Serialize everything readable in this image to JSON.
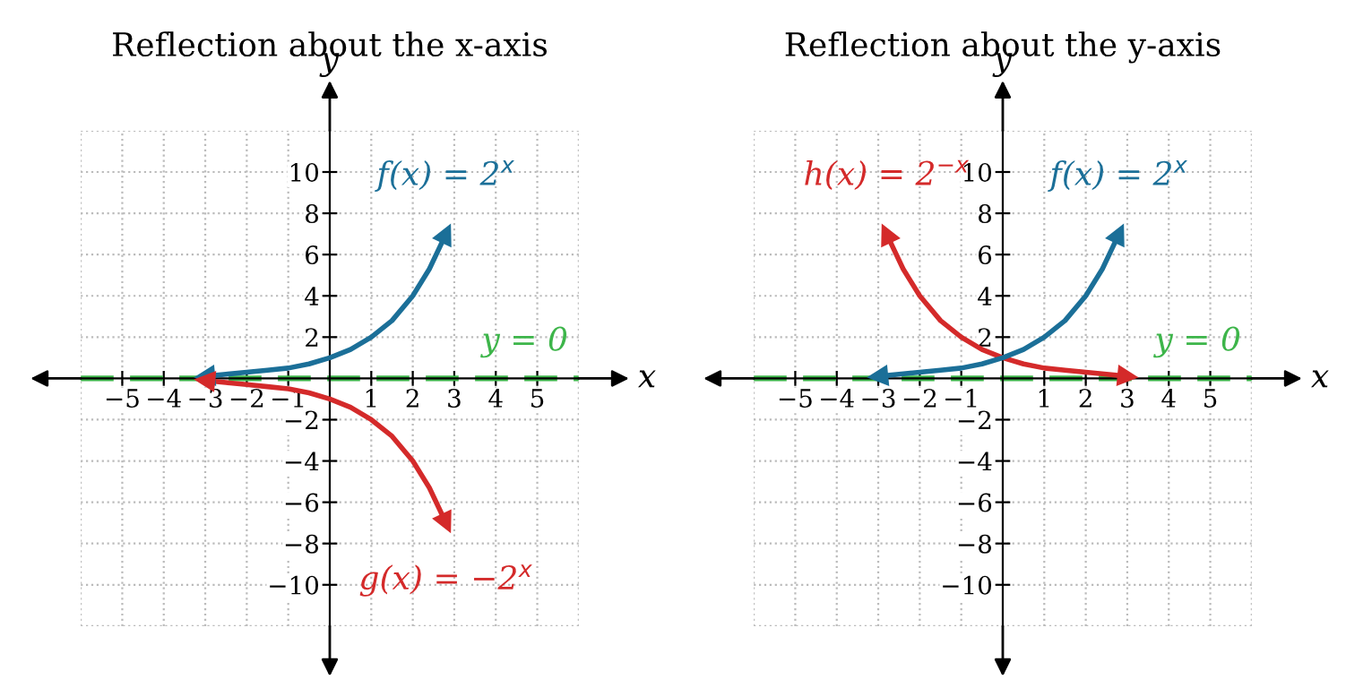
{
  "chart_data": [
    {
      "type": "line",
      "title": "Reflection about the x-axis",
      "xlabel": "x",
      "ylabel": "y",
      "xlim": [
        -6,
        6
      ],
      "ylim": [
        -12,
        12
      ],
      "xticks": [
        -5,
        -4,
        -3,
        -2,
        -1,
        1,
        2,
        3,
        4,
        5
      ],
      "yticks": [
        -10,
        -8,
        -6,
        -4,
        -2,
        2,
        4,
        6,
        8,
        10
      ],
      "grid": true,
      "line_style": "solid",
      "marker": "none",
      "series": [
        {
          "name": "f(x) = 2$^{x}$",
          "color": "#1b6f98",
          "x": [
            -3,
            -2.5,
            -2,
            -1.5,
            -1,
            -0.5,
            0,
            0.5,
            1,
            1.5,
            2,
            2.4,
            2.8
          ],
          "values": [
            0.1,
            0.2,
            0.3,
            0.4,
            0.5,
            0.7,
            1,
            1.4,
            2,
            2.8,
            4,
            5.3,
            7
          ]
        },
        {
          "name": "g(x) = −2$^{x}$",
          "color": "#d42a2a",
          "x": [
            -3,
            -2.5,
            -2,
            -1.5,
            -1,
            -0.5,
            0,
            0.5,
            1,
            1.5,
            2,
            2.4,
            2.8
          ],
          "values": [
            -0.1,
            -0.2,
            -0.3,
            -0.4,
            -0.5,
            -0.7,
            -1,
            -1.4,
            -2,
            -2.8,
            -4,
            -5.3,
            -7
          ]
        }
      ],
      "ref_lines": [
        {
          "axis": "y",
          "value": 0,
          "label": "y = 0",
          "color": "#3db54a",
          "line_style": "dashed"
        }
      ]
    },
    {
      "type": "line",
      "title": "Reflection about the y-axis",
      "xlabel": "x",
      "ylabel": "y",
      "xlim": [
        -6,
        6
      ],
      "ylim": [
        -12,
        12
      ],
      "xticks": [
        -5,
        -4,
        -3,
        -2,
        -1,
        1,
        2,
        3,
        4,
        5
      ],
      "yticks": [
        -10,
        -8,
        -6,
        -4,
        -2,
        2,
        4,
        6,
        8,
        10
      ],
      "grid": true,
      "line_style": "solid",
      "marker": "none",
      "series": [
        {
          "name": "h(x) = 2$^{−x}$",
          "color": "#d42a2a",
          "x": [
            -2.8,
            -2.4,
            -2,
            -1.5,
            -1,
            -0.5,
            0,
            0.5,
            1,
            1.5,
            2,
            2.5,
            3
          ],
          "values": [
            7,
            5.3,
            4,
            2.8,
            2,
            1.4,
            1,
            0.7,
            0.5,
            0.4,
            0.3,
            0.2,
            0.1
          ]
        },
        {
          "name": "f(x) = 2$^{x}$",
          "color": "#1b6f98",
          "x": [
            -3,
            -2.5,
            -2,
            -1.5,
            -1,
            -0.5,
            0,
            0.5,
            1,
            1.5,
            2,
            2.4,
            2.8
          ],
          "values": [
            0.1,
            0.2,
            0.3,
            0.4,
            0.5,
            0.7,
            1,
            1.4,
            2,
            2.8,
            4,
            5.3,
            7
          ]
        }
      ],
      "ref_lines": [
        {
          "axis": "y",
          "value": 0,
          "label": "y = 0",
          "color": "#3db54a",
          "line_style": "dashed"
        }
      ]
    }
  ]
}
